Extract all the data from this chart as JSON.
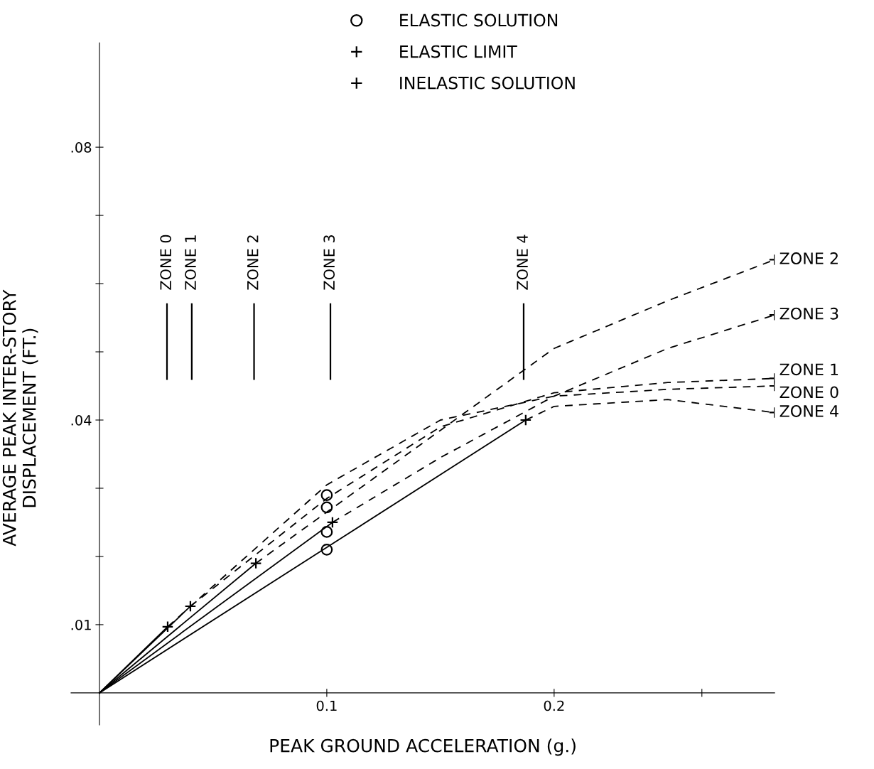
{
  "chart_data": {
    "type": "line",
    "xlabel": "PEAK GROUND ACCELERATION (g.)",
    "ylabel": "AVERAGE PEAK INTER-STORY\nDISPLACEMENT (FT.)",
    "xlim": [
      -0.0125,
      0.297
    ],
    "ylim": [
      -0.0047,
      0.0953
    ],
    "xticks": [
      0.1,
      0.2,
      {
        "value": 0.265,
        "label": null
      }
    ],
    "yticks": [
      {
        "value": 0.01,
        "label": ".01"
      },
      {
        "value": 0.02,
        "label": null
      },
      {
        "value": 0.03,
        "label": null
      },
      {
        "value": 0.04,
        "label": ".04"
      },
      {
        "value": 0.05,
        "label": null
      },
      {
        "value": 0.06,
        "label": null
      },
      {
        "value": 0.07,
        "label": null
      },
      {
        "value": 0.08,
        "label": ".08"
      }
    ],
    "grid": false,
    "legend": "top",
    "ref_lines": [
      {
        "axis": "x",
        "value": 0.0297,
        "label": "ZONE 0",
        "color": "#000000"
      },
      {
        "axis": "x",
        "value": 0.0406,
        "label": "ZONE 1",
        "color": "#000000"
      },
      {
        "axis": "x",
        "value": 0.068,
        "label": "ZONE 2",
        "color": "#000000"
      },
      {
        "axis": "x",
        "value": 0.1016,
        "label": "ZONE 3",
        "color": "#000000"
      },
      {
        "axis": "x",
        "value": 0.1866,
        "label": "ZONE 4",
        "color": "#000000"
      }
    ],
    "series": [
      {
        "type": "line",
        "line_style": "solid",
        "marker": "none",
        "color": "#000000",
        "x": [
          0,
          0.03
        ],
        "values": [
          0,
          0.0097
        ]
      },
      {
        "type": "line",
        "line_style": "solid",
        "marker": "none",
        "color": "#000000",
        "x": [
          0,
          0.04
        ],
        "values": [
          0,
          0.0127
        ]
      },
      {
        "type": "line",
        "line_style": "solid",
        "marker": "none",
        "color": "#000000",
        "x": [
          0,
          0.0688
        ],
        "values": [
          0,
          0.019
        ]
      },
      {
        "type": "line",
        "line_style": "solid",
        "marker": "none",
        "color": "#000000",
        "x": [
          0,
          0.1025
        ],
        "values": [
          0,
          0.025
        ]
      },
      {
        "type": "line",
        "line_style": "solid",
        "marker": "none",
        "color": "#000000",
        "x": [
          0,
          0.1875
        ],
        "values": [
          0,
          0.04
        ]
      },
      {
        "line_style": "dashed",
        "marker": "none",
        "color": "#000000",
        "name": "ZONE 0",
        "x": [
          0.03,
          0.1,
          0.15,
          0.2,
          0.25,
          0.297
        ],
        "values": [
          0.0097,
          0.0305,
          0.04,
          0.0435,
          0.0445,
          0.045
        ]
      },
      {
        "line_style": "dashed",
        "marker": "none",
        "color": "#000000",
        "name": "ZONE 1",
        "x": [
          0.04,
          0.1,
          0.15,
          0.2,
          0.25,
          0.297
        ],
        "values": [
          0.0127,
          0.0285,
          0.039,
          0.044,
          0.0455,
          0.0461
        ]
      },
      {
        "line_style": "dashed",
        "marker": "none",
        "color": "#000000",
        "name": "ZONE 2",
        "x": [
          0.0688,
          0.1,
          0.15,
          0.2,
          0.25,
          0.297
        ],
        "values": [
          0.019,
          0.0265,
          0.0385,
          0.0505,
          0.0575,
          0.0635
        ]
      },
      {
        "line_style": "dashed",
        "marker": "none",
        "color": "#000000",
        "name": "ZONE 3",
        "x": [
          0.1025,
          0.15,
          0.2,
          0.25,
          0.297
        ],
        "values": [
          0.025,
          0.0345,
          0.0435,
          0.0505,
          0.0554
        ]
      },
      {
        "line_style": "dashed",
        "marker": "none",
        "color": "#000000",
        "name": "ZONE 4",
        "x": [
          0.1875,
          0.2,
          0.25,
          0.297
        ],
        "values": [
          0.04,
          0.042,
          0.043,
          0.0411
        ]
      },
      {
        "type": "scatter",
        "marker": "circle",
        "color": "#000000",
        "name": "ELASTIC SOLUTION",
        "x": [
          0.1,
          0.1,
          0.1,
          0.1
        ],
        "values": [
          0.029,
          0.0272,
          0.0236,
          0.021
        ]
      },
      {
        "type": "scatter",
        "marker": "cross",
        "color": "#000000",
        "name": "ELASTIC LIMIT",
        "x": [
          0.03,
          0.04,
          0.0688,
          0.1025,
          0.1875
        ],
        "values": [
          0.0097,
          0.0127,
          0.019,
          0.025,
          0.04
        ]
      },
      {
        "type": "scatter",
        "marker": "cross",
        "color": "#000000",
        "name": "INELASTIC SOLUTION",
        "x": [
          0.297,
          0.297,
          0.297,
          0.297,
          0.297
        ],
        "values": [
          0.045,
          0.0461,
          0.0635,
          0.0554,
          0.0411
        ]
      }
    ]
  }
}
